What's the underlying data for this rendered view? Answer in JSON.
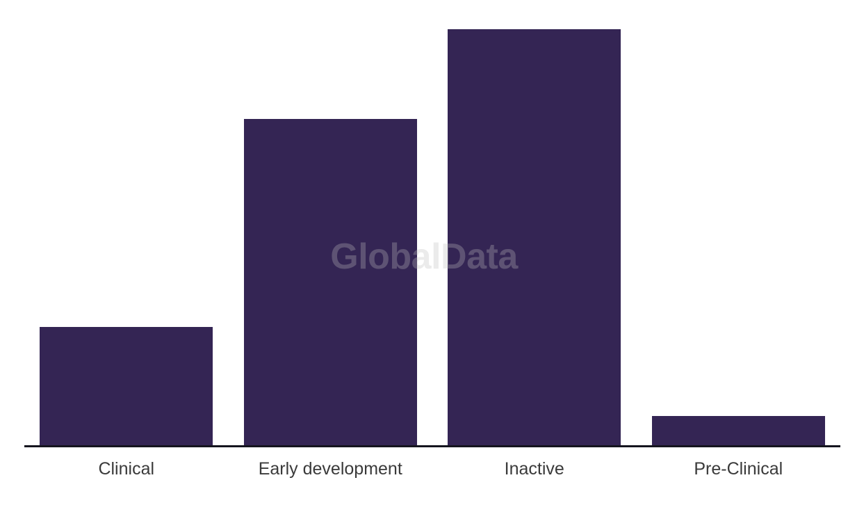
{
  "watermark": {
    "text": "GlobalData"
  },
  "chart_data": {
    "type": "bar",
    "title": "",
    "xlabel": "",
    "ylabel": "",
    "categories": [
      "Clinical",
      "Early development",
      "Inactive",
      "Pre-Clinical"
    ],
    "values": [
      170,
      469,
      598,
      42
    ],
    "ylim": [
      0,
      640
    ],
    "grid": false,
    "legend": false,
    "value_axis_visible": false,
    "layout_hints": {
      "bar_order_left_to_right": [
        "Clinical",
        "Early development",
        "Inactive",
        "Pre-Clinical"
      ],
      "baseline_axis": "bottom",
      "watermark_position": "center"
    },
    "colors": {
      "bar": "#342554",
      "axis_line": "#15151F",
      "category_label": "#3A3A3A",
      "watermark": "#BEBEBE",
      "background": "#FFFFFF"
    }
  }
}
